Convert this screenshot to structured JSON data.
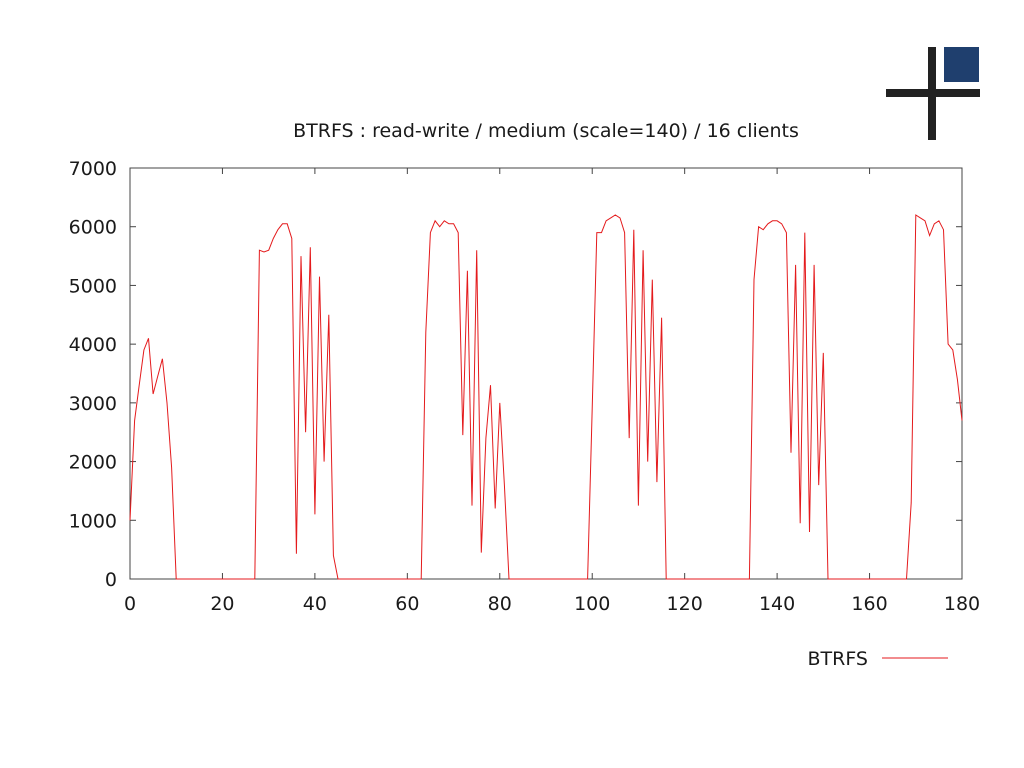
{
  "chart_data": {
    "type": "line",
    "title": "BTRFS : read-write / medium (scale=140) / 16 clients",
    "xlabel": "",
    "ylabel": "",
    "xlim": [
      0,
      180
    ],
    "ylim": [
      0,
      7000
    ],
    "x_ticks": [
      "0",
      "20",
      "40",
      "60",
      "80",
      "100",
      "120",
      "140",
      "160",
      "180"
    ],
    "y_ticks": [
      "0",
      "1000",
      "2000",
      "3000",
      "4000",
      "5000",
      "6000",
      "7000"
    ],
    "grid": false,
    "legend_position": "bottom-right",
    "series": [
      {
        "name": "BTRFS",
        "color": "#e41a1c",
        "points": [
          [
            0,
            1000
          ],
          [
            1,
            2700
          ],
          [
            2,
            3300
          ],
          [
            3,
            3900
          ],
          [
            4,
            4100
          ],
          [
            5,
            3150
          ],
          [
            6,
            3450
          ],
          [
            7,
            3750
          ],
          [
            8,
            3000
          ],
          [
            9,
            1900
          ],
          [
            10,
            0
          ],
          [
            27,
            0
          ],
          [
            28,
            5600
          ],
          [
            29,
            5570
          ],
          [
            30,
            5600
          ],
          [
            31,
            5800
          ],
          [
            32,
            5950
          ],
          [
            33,
            6050
          ],
          [
            34,
            6050
          ],
          [
            35,
            5800
          ],
          [
            36,
            430
          ],
          [
            37,
            5500
          ],
          [
            38,
            2500
          ],
          [
            39,
            5650
          ],
          [
            40,
            1100
          ],
          [
            41,
            5150
          ],
          [
            42,
            2000
          ],
          [
            43,
            4500
          ],
          [
            44,
            400
          ],
          [
            45,
            0
          ],
          [
            62,
            0
          ],
          [
            63,
            0
          ],
          [
            64,
            4200
          ],
          [
            65,
            5900
          ],
          [
            66,
            6100
          ],
          [
            67,
            6000
          ],
          [
            68,
            6100
          ],
          [
            69,
            6050
          ],
          [
            70,
            6050
          ],
          [
            71,
            5900
          ],
          [
            72,
            2450
          ],
          [
            73,
            5250
          ],
          [
            74,
            1250
          ],
          [
            75,
            5600
          ],
          [
            76,
            450
          ],
          [
            77,
            2400
          ],
          [
            78,
            3300
          ],
          [
            79,
            1200
          ],
          [
            80,
            3000
          ],
          [
            81,
            1600
          ],
          [
            82,
            0
          ],
          [
            99,
            0
          ],
          [
            100,
            2900
          ],
          [
            101,
            5900
          ],
          [
            102,
            5900
          ],
          [
            103,
            6100
          ],
          [
            104,
            6150
          ],
          [
            105,
            6200
          ],
          [
            106,
            6150
          ],
          [
            107,
            5900
          ],
          [
            108,
            2400
          ],
          [
            109,
            5950
          ],
          [
            110,
            1250
          ],
          [
            111,
            5600
          ],
          [
            112,
            2000
          ],
          [
            113,
            5100
          ],
          [
            114,
            1650
          ],
          [
            115,
            4450
          ],
          [
            116,
            0
          ],
          [
            134,
            0
          ],
          [
            135,
            5100
          ],
          [
            136,
            6000
          ],
          [
            137,
            5950
          ],
          [
            138,
            6050
          ],
          [
            139,
            6100
          ],
          [
            140,
            6100
          ],
          [
            141,
            6050
          ],
          [
            142,
            5900
          ],
          [
            143,
            2150
          ],
          [
            144,
            5350
          ],
          [
            145,
            950
          ],
          [
            146,
            5900
          ],
          [
            147,
            800
          ],
          [
            148,
            5350
          ],
          [
            149,
            1600
          ],
          [
            150,
            3850
          ],
          [
            151,
            0
          ],
          [
            168,
            0
          ],
          [
            169,
            1300
          ],
          [
            170,
            6200
          ],
          [
            171,
            6150
          ],
          [
            172,
            6100
          ],
          [
            173,
            5850
          ],
          [
            174,
            6050
          ],
          [
            175,
            6100
          ],
          [
            176,
            5950
          ],
          [
            177,
            4000
          ],
          [
            178,
            3900
          ],
          [
            179,
            3400
          ],
          [
            180,
            2700
          ]
        ]
      }
    ]
  },
  "logo": {
    "square_color": "#1f3f6e",
    "cross_color": "#222222"
  }
}
